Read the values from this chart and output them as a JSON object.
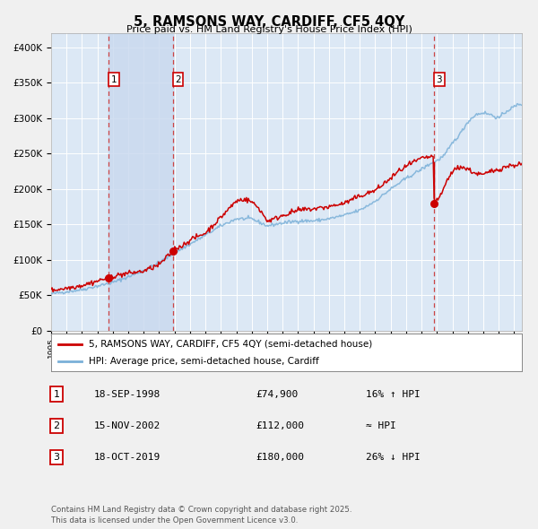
{
  "title": "5, RAMSONS WAY, CARDIFF, CF5 4QY",
  "subtitle": "Price paid vs. HM Land Registry's House Price Index (HPI)",
  "ylim": [
    0,
    420000
  ],
  "yticks": [
    0,
    50000,
    100000,
    150000,
    200000,
    250000,
    300000,
    350000,
    400000
  ],
  "ytick_labels": [
    "£0",
    "£50K",
    "£100K",
    "£150K",
    "£200K",
    "£250K",
    "£300K",
    "£350K",
    "£400K"
  ],
  "fig_facecolor": "#f0f0f0",
  "plot_bg_color": "#dce8f5",
  "grid_color": "#ffffff",
  "hpi_color": "#7ab0d8",
  "price_color": "#cc0000",
  "dashed_line_color": "#cc4444",
  "shade_color": "#c8d8ee",
  "transactions": [
    {
      "num": 1,
      "date_str": "18-SEP-1998",
      "date_x": 1998.71,
      "price": 74900,
      "hpi_note": "16% ↑ HPI"
    },
    {
      "num": 2,
      "date_str": "15-NOV-2002",
      "date_x": 2002.88,
      "price": 112000,
      "hpi_note": "≈ HPI"
    },
    {
      "num": 3,
      "date_str": "18-OCT-2019",
      "date_x": 2019.79,
      "price": 180000,
      "hpi_note": "26% ↓ HPI"
    }
  ],
  "legend_entries": [
    {
      "label": "5, RAMSONS WAY, CARDIFF, CF5 4QY (semi-detached house)",
      "color": "#cc0000"
    },
    {
      "label": "HPI: Average price, semi-detached house, Cardiff",
      "color": "#7ab0d8"
    }
  ],
  "footnote": "Contains HM Land Registry data © Crown copyright and database right 2025.\nThis data is licensed under the Open Government Licence v3.0.",
  "xmin": 1995.0,
  "xmax": 2025.5
}
